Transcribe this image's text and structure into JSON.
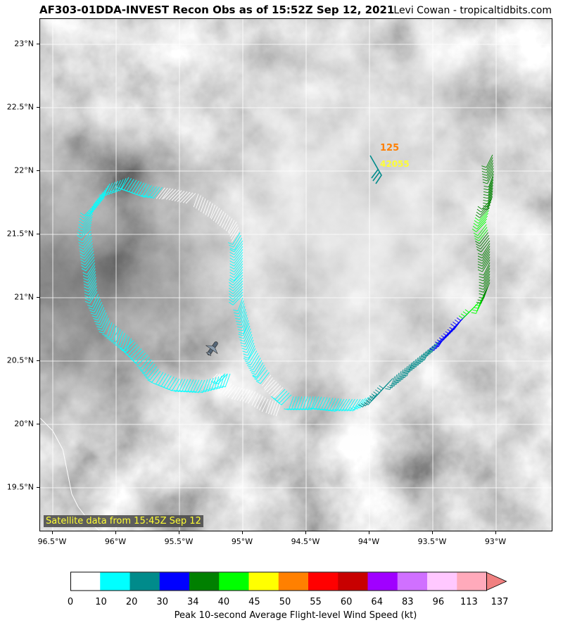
{
  "title": {
    "left": "AF303-01DDA-INVEST Recon Obs as of 15:52Z Sep 12, 2021",
    "right": "Levi Cowan - tropicaltidbits.com"
  },
  "map": {
    "lon_range": [
      -96.6,
      -92.55
    ],
    "lat_range": [
      19.15,
      23.2
    ],
    "lat_ticks": [
      {
        "value": 23.0,
        "label": "23°N"
      },
      {
        "value": 22.5,
        "label": "22.5°N"
      },
      {
        "value": 22.0,
        "label": "22°N"
      },
      {
        "value": 21.5,
        "label": "21.5°N"
      },
      {
        "value": 21.0,
        "label": "21°N"
      },
      {
        "value": 20.5,
        "label": "20.5°N"
      },
      {
        "value": 20.0,
        "label": "20°N"
      },
      {
        "value": 19.5,
        "label": "19.5°N"
      }
    ],
    "lon_ticks": [
      {
        "value": -96.5,
        "label": "96.5°W"
      },
      {
        "value": -96.0,
        "label": "96°W"
      },
      {
        "value": -95.5,
        "label": "95.5°W"
      },
      {
        "value": -95.0,
        "label": "95°W"
      },
      {
        "value": -94.5,
        "label": "94.5°W"
      },
      {
        "value": -94.0,
        "label": "94°W"
      },
      {
        "value": -93.5,
        "label": "93.5°W"
      },
      {
        "value": -93.0,
        "label": "93°W"
      }
    ],
    "grid": true,
    "satellite_label": "Satellite data from 15:45Z Sep 12",
    "buoy": {
      "speed_label": "125",
      "id_label": "42055",
      "lon": -93.95,
      "lat": 22.0
    },
    "coastline": [
      [
        -96.6,
        20.05
      ],
      [
        -96.5,
        19.95
      ],
      [
        -96.42,
        19.8
      ],
      [
        -96.38,
        19.6
      ],
      [
        -96.35,
        19.45
      ],
      [
        -96.3,
        19.35
      ],
      [
        -96.2,
        19.22
      ],
      [
        -96.12,
        19.15
      ]
    ],
    "track": [
      {
        "lon": -94.7,
        "lat": 20.17,
        "kt": 5
      },
      {
        "lon": -94.8,
        "lat": 20.2,
        "kt": 5
      },
      {
        "lon": -94.9,
        "lat": 20.26,
        "kt": 5
      },
      {
        "lon": -95.05,
        "lat": 20.3,
        "kt": 5
      },
      {
        "lon": -95.2,
        "lat": 20.4,
        "kt": 5
      },
      {
        "lon": -95.1,
        "lat": 20.4,
        "kt": 15
      },
      {
        "lon": -95.3,
        "lat": 20.35,
        "kt": 15
      },
      {
        "lon": -95.5,
        "lat": 20.36,
        "kt": 15
      },
      {
        "lon": -95.65,
        "lat": 20.42,
        "kt": 15
      },
      {
        "lon": -95.75,
        "lat": 20.55,
        "kt": 15
      },
      {
        "lon": -95.88,
        "lat": 20.68,
        "kt": 15
      },
      {
        "lon": -96.05,
        "lat": 20.82,
        "kt": 15
      },
      {
        "lon": -96.15,
        "lat": 21.05,
        "kt": 15
      },
      {
        "lon": -96.17,
        "lat": 21.3,
        "kt": 15
      },
      {
        "lon": -96.2,
        "lat": 21.55,
        "kt": 15
      },
      {
        "lon": -96.17,
        "lat": 21.75,
        "kt": 15
      },
      {
        "lon": -96.05,
        "lat": 21.9,
        "kt": 15
      },
      {
        "lon": -95.9,
        "lat": 21.95,
        "kt": 15
      },
      {
        "lon": -95.7,
        "lat": 21.88,
        "kt": 15
      },
      {
        "lon": -95.55,
        "lat": 21.86,
        "kt": 5
      },
      {
        "lon": -95.35,
        "lat": 21.82,
        "kt": 5
      },
      {
        "lon": -95.2,
        "lat": 21.72,
        "kt": 5
      },
      {
        "lon": -95.05,
        "lat": 21.6,
        "kt": 5
      },
      {
        "lon": -95.0,
        "lat": 21.45,
        "kt": 15
      },
      {
        "lon": -95.0,
        "lat": 21.2,
        "kt": 15
      },
      {
        "lon": -95.0,
        "lat": 21.0,
        "kt": 15
      },
      {
        "lon": -94.95,
        "lat": 20.8,
        "kt": 15
      },
      {
        "lon": -94.9,
        "lat": 20.6,
        "kt": 15
      },
      {
        "lon": -94.82,
        "lat": 20.45,
        "kt": 15
      },
      {
        "lon": -94.75,
        "lat": 20.35,
        "kt": 5
      },
      {
        "lon": -94.6,
        "lat": 20.22,
        "kt": 15
      },
      {
        "lon": -94.4,
        "lat": 20.22,
        "kt": 15
      },
      {
        "lon": -94.2,
        "lat": 20.2,
        "kt": 15
      },
      {
        "lon": -94.05,
        "lat": 20.2,
        "kt": 15
      },
      {
        "lon": -93.92,
        "lat": 20.25,
        "kt": 25
      },
      {
        "lon": -93.8,
        "lat": 20.38,
        "kt": 25
      },
      {
        "lon": -93.65,
        "lat": 20.5,
        "kt": 25
      },
      {
        "lon": -93.5,
        "lat": 20.62,
        "kt": 25
      },
      {
        "lon": -93.38,
        "lat": 20.72,
        "kt": 32
      },
      {
        "lon": -93.25,
        "lat": 20.85,
        "kt": 32
      },
      {
        "lon": -93.12,
        "lat": 20.98,
        "kt": 42
      },
      {
        "lon": -93.05,
        "lat": 21.12,
        "kt": 37
      },
      {
        "lon": -93.05,
        "lat": 21.3,
        "kt": 37
      },
      {
        "lon": -93.05,
        "lat": 21.45,
        "kt": 37
      },
      {
        "lon": -93.08,
        "lat": 21.6,
        "kt": 42
      },
      {
        "lon": -93.03,
        "lat": 21.8,
        "kt": 37
      },
      {
        "lon": -93.02,
        "lat": 22.0,
        "kt": 37
      },
      {
        "lon": -93.03,
        "lat": 22.15,
        "kt": 37
      }
    ]
  },
  "colorbar": {
    "title": "Peak 10-second Average Flight-level Wind Speed (kt)",
    "bounds": [
      0,
      10,
      20,
      30,
      34,
      40,
      45,
      50,
      55,
      60,
      64,
      83,
      96,
      113,
      137
    ],
    "labels": [
      "0",
      "10",
      "20",
      "30",
      "34",
      "40",
      "45",
      "50",
      "55",
      "60",
      "64",
      "83",
      "96",
      "113",
      "137"
    ],
    "colors": [
      "#ffffff",
      "#00ffff",
      "#008b8b",
      "#0000ff",
      "#008000",
      "#00ff00",
      "#ffff00",
      "#ff8000",
      "#ff0000",
      "#c80000",
      "#a000ff",
      "#d070ff",
      "#ffc8ff",
      "#ffaabb",
      "#f08080"
    ]
  }
}
